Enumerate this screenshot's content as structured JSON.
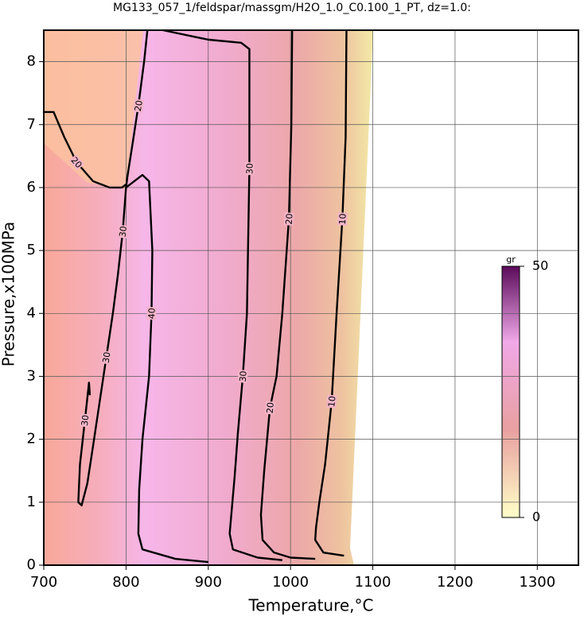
{
  "chart_data": {
    "type": "contour",
    "title": "MG133_057_1/feldspar/massgm/H2O_1.0_C0.100_1_PT, dz=1.0:",
    "x_label": "Temperature,°C",
    "y_label": "Pressure,x100MPa",
    "xlim": [
      700,
      1350
    ],
    "xticks": [
      700,
      800,
      900,
      1000,
      1100,
      1200,
      1300
    ],
    "ylim": [
      0,
      8.5
    ],
    "yticks": [
      0,
      1,
      2,
      3,
      4,
      5,
      6,
      7,
      8
    ],
    "grid": true,
    "contours": [
      {
        "level": 10,
        "x": [
          1068,
          1067,
          1063,
          1056,
          1050,
          1042,
          1035,
          1031,
          1030,
          1040,
          1065
        ],
        "y": [
          8.5,
          6.8,
          5.5,
          4,
          2.6,
          1.6,
          1,
          0.6,
          0.4,
          0.2,
          0.15
        ]
      },
      {
        "level": 20,
        "x": [
          1002,
          1001,
          998,
          990,
          983,
          975,
          968,
          964,
          966,
          980,
          1000,
          1030
        ],
        "y": [
          8.5,
          7,
          5.5,
          4,
          3,
          2.5,
          1.5,
          0.8,
          0.4,
          0.2,
          0.12,
          0.1
        ]
      },
      {
        "level": 30,
        "x": [
          845,
          900,
          940,
          950,
          950,
          947,
          942,
          936,
          932,
          928,
          926,
          930,
          960,
          990
        ],
        "y": [
          8.5,
          8.35,
          8.3,
          8.2,
          6.3,
          4,
          3,
          2.1,
          1.4,
          0.8,
          0.5,
          0.25,
          0.12,
          0.08
        ]
      },
      {
        "level": 40,
        "x": [
          800,
          820,
          828,
          832,
          831,
          828,
          820,
          816,
          815,
          820,
          860,
          900
        ],
        "y": [
          6,
          6.2,
          6.1,
          5,
          4,
          3,
          2,
          1.2,
          0.5,
          0.25,
          0.1,
          0.05
        ]
      },
      {
        "level": 20,
        "x": [
          700,
          712,
          725,
          740,
          760,
          780,
          795,
          800
        ],
        "y": [
          7.2,
          7.2,
          6.8,
          6.4,
          6.1,
          6,
          6,
          6.05
        ]
      },
      {
        "level": 20,
        "x": [
          826,
          822,
          815,
          808,
          802,
          800
        ],
        "y": [
          8.5,
          8,
          7.3,
          6.7,
          6.2,
          6
        ]
      },
      {
        "level": 30,
        "x": [
          800,
          796,
          790,
          784,
          776,
          768,
          760,
          753,
          746,
          742,
          744,
          750,
          755,
          756
        ],
        "y": [
          6,
          5.3,
          4.6,
          4,
          3.3,
          2.6,
          1.9,
          1.3,
          0.95,
          1,
          1.6,
          2.3,
          2.9,
          2.7
        ]
      }
    ],
    "colorbar": {
      "label": "gr",
      "ticks": [
        0,
        50
      ]
    }
  }
}
